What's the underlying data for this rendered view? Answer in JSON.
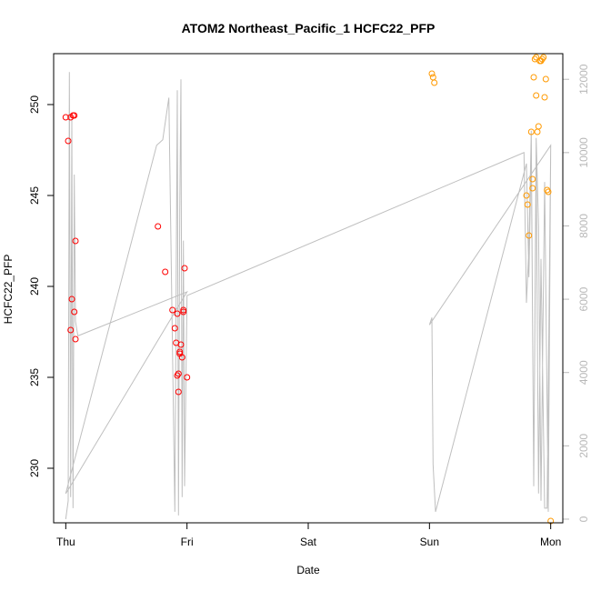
{
  "chart_data": {
    "type": "scatter",
    "title": "ATOM2 Northeast_Pacific_1 HCFC22_PFP",
    "xlabel": "Date",
    "ylabel": "HCFC22_PFP",
    "xlim": [
      -0.1,
      4.1
    ],
    "ylim": [
      227,
      252.8
    ],
    "x_tick_values": [
      0,
      1,
      2,
      3,
      4
    ],
    "x_tick_labels": [
      "Thu",
      "Fri",
      "Sat",
      "Sun",
      "Mon"
    ],
    "y_ticks": [
      230,
      235,
      240,
      245,
      250
    ],
    "y2_lim": [
      -100,
      12700
    ],
    "y2_ticks": [
      0,
      2000,
      4000,
      6000,
      8000,
      10000,
      12000
    ],
    "grid": false,
    "legend": "none",
    "colors": {
      "red_points": "#ff0000",
      "orange_points": "#ff9900",
      "line": "#bfbfbf",
      "right_axis": "#b8b8b8"
    },
    "series": [
      {
        "x": [
          0.0,
          0.02,
          0.04,
          0.05,
          0.07,
          0.08,
          0.07,
          0.08,
          0.06,
          0.04
        ],
        "y": [
          249.3,
          248.0,
          237.6,
          239.3,
          238.6,
          237.1,
          249.4,
          242.5,
          249.4,
          249.3
        ]
      },
      {
        "x": [
          0.76,
          0.82,
          0.88,
          0.9,
          0.91,
          0.92,
          0.93,
          0.94,
          0.95,
          0.96,
          0.97,
          0.98,
          0.92,
          0.93,
          0.97,
          1.0,
          0.94
        ],
        "y": [
          243.3,
          240.8,
          238.7,
          237.7,
          236.9,
          235.1,
          234.2,
          236.4,
          236.8,
          236.1,
          238.7,
          241.0,
          238.5,
          235.2,
          238.6,
          235.0,
          236.3
        ]
      },
      {
        "x": [
          3.02,
          3.03,
          3.04,
          3.8,
          3.81,
          3.82,
          3.84,
          3.85,
          3.86,
          3.87,
          3.88,
          3.89,
          3.9,
          3.91,
          3.92,
          3.93,
          3.94,
          3.95,
          3.96,
          3.97,
          3.98,
          4.0,
          3.85,
          3.88
        ],
        "y": [
          251.7,
          251.5,
          251.2,
          245.0,
          244.5,
          242.8,
          248.5,
          245.4,
          251.5,
          252.5,
          252.6,
          248.5,
          248.8,
          252.4,
          252.4,
          252.5,
          252.6,
          250.4,
          251.4,
          245.3,
          245.2,
          227.1,
          245.9,
          250.5
        ]
      }
    ],
    "line_series": {
      "x": [
        0.0,
        0.02,
        0.03,
        0.04,
        0.05,
        0.06,
        0.07,
        0.08,
        0.09,
        0.1,
        1.0,
        0.02,
        0.0,
        0.75,
        0.8,
        0.85,
        0.9,
        0.92,
        0.93,
        0.94,
        0.95,
        0.96,
        0.97,
        0.98,
        1.0,
        3.78,
        3.8,
        3.82,
        3.84,
        3.86,
        3.88,
        3.9,
        3.92,
        3.95,
        3.98,
        4.0,
        3.0,
        3.02,
        3.03,
        3.05,
        3.8,
        3.82,
        3.84,
        3.86,
        3.88,
        3.9,
        3.92,
        3.95,
        3.97,
        4.0
      ],
      "y": [
        0,
        500,
        12200,
        600,
        10900,
        300,
        9400,
        5400,
        5200,
        5000,
        6200,
        800,
        700,
        10200,
        10350,
        11500,
        200,
        11700,
        100,
        8400,
        12000,
        600,
        7600,
        900,
        6100,
        10000,
        5900,
        7400,
        10600,
        900,
        10400,
        8000,
        500,
        9200,
        200,
        10200,
        5300,
        5500,
        1500,
        200,
        9700,
        6600,
        10100,
        1100,
        9700,
        700,
        7100,
        300,
        300,
        10200
      ]
    }
  }
}
